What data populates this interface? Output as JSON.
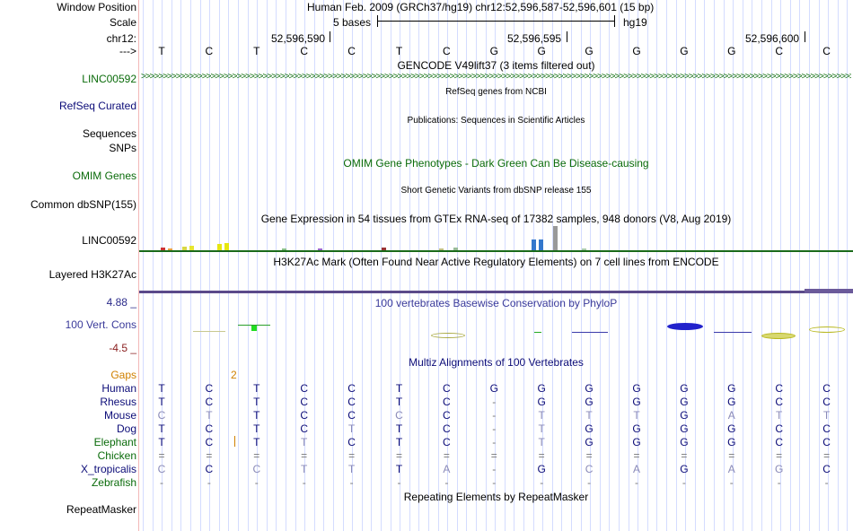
{
  "header": {
    "window_position_label": "Window Position",
    "window_position_value": "Human Feb. 2009 (GRCh37/hg19)   chr12:52,596,587-52,596,601 (15 bp)",
    "scale_label": "Scale",
    "scale_value": "5 bases",
    "assembly": "hg19",
    "chrom_label": "chr12:",
    "coord_1": "52,596,590",
    "coord_2": "52,596,595",
    "coord_3": "52,596,600",
    "strand_label": "--->"
  },
  "sequence": [
    "T",
    "C",
    "T",
    "C",
    "C",
    "T",
    "C",
    "G",
    "G",
    "G",
    "G",
    "G",
    "G",
    "C",
    "C"
  ],
  "tracks": {
    "gencode": {
      "title": "GENCODE V49lift37 (3 items filtered out)",
      "label": "LINC00592"
    },
    "refseq": {
      "title": "RefSeq genes from NCBI",
      "label": "RefSeq Curated"
    },
    "publications": {
      "title": "Publications: Sequences in Scientific Articles",
      "label1": "Sequences",
      "label2": "SNPs"
    },
    "omim": {
      "title": "OMIM Gene Phenotypes - Dark Green Can Be Disease-causing",
      "label": "OMIM Genes"
    },
    "dbsnp": {
      "title": "Short Genetic Variants from dbSNP release 155",
      "label": "Common dbSNP(155)"
    },
    "gtex": {
      "title": "Gene Expression in 54 tissues from GTEx RNA-seq of 17382 samples, 948 donors (V8, Aug 2019)",
      "label": "LINC00592"
    },
    "h3k27ac": {
      "title": "H3K27Ac Mark (Often Found Near Active Regulatory Elements) on 7 cell lines from ENCODE",
      "label": "Layered H3K27Ac"
    },
    "phylop": {
      "title": "100 vertebrates Basewise Conservation by PhyloP",
      "label": "100 Vert. Cons",
      "max": "4.88 _",
      "min": "-4.5 _"
    },
    "multiz": {
      "title": "Multiz Alignments of 100 Vertebrates",
      "gaps_label": "Gaps",
      "gap_value": "2"
    },
    "repeatmasker": {
      "title": "Repeating Elements by RepeatMasker",
      "label": "RepeatMasker"
    }
  },
  "alignment": [
    {
      "species": "Human",
      "bases": [
        "T",
        "C",
        "T",
        "C",
        "C",
        "T",
        "C",
        "G",
        "G",
        "G",
        "G",
        "G",
        "G",
        "C",
        "C"
      ]
    },
    {
      "species": "Rhesus",
      "bases": [
        "T",
        "C",
        "T",
        "C",
        "C",
        "T",
        "C",
        "-",
        "G",
        "G",
        "G",
        "G",
        "G",
        "C",
        "C"
      ]
    },
    {
      "species": "Mouse",
      "bases": [
        "C",
        "T",
        "T",
        "C",
        "C",
        "C",
        "C",
        "-",
        "T",
        "T",
        "T",
        "G",
        "A",
        "T",
        "T"
      ]
    },
    {
      "species": "Dog",
      "bases": [
        "T",
        "C",
        "T",
        "C",
        "T",
        "T",
        "C",
        "-",
        "T",
        "G",
        "G",
        "G",
        "G",
        "C",
        "C"
      ]
    },
    {
      "species": "Elephant",
      "bases": [
        "T",
        "C",
        "T",
        "T",
        "C",
        "T",
        "C",
        "-",
        "T",
        "G",
        "G",
        "G",
        "G",
        "C",
        "C"
      ]
    },
    {
      "species": "Chicken",
      "bases": [
        "=",
        "=",
        "=",
        "=",
        "=",
        "=",
        "=",
        "=",
        "=",
        "=",
        "=",
        "=",
        "=",
        "=",
        "="
      ]
    },
    {
      "species": "X_tropicalis",
      "bases": [
        "C",
        "C",
        "C",
        "T",
        "T",
        "T",
        "A",
        "-",
        "G",
        "C",
        "A",
        "G",
        "A",
        "G",
        "C"
      ]
    },
    {
      "species": "Zebrafish",
      "bases": [
        "-",
        "-",
        "-",
        "-",
        "-",
        "-",
        "-",
        "-",
        "-",
        "-",
        "-",
        "-",
        "-",
        "-",
        "-"
      ]
    }
  ],
  "colors": {
    "gene_green": "#0a6b0a",
    "refseq_blue": "#0c0c78",
    "phylop_title": "#3a3a9a",
    "phylop_max": "#2b2b8a",
    "phylop_min": "#8b2020",
    "gaps_orange": "#d08000",
    "h3k27ac_bar": "#5b4a8a"
  },
  "gtex_bars": [
    {
      "pos": 0.03,
      "h": 0.12,
      "color": "#cc3333"
    },
    {
      "pos": 0.04,
      "h": 0.08,
      "color": "#e8a040"
    },
    {
      "pos": 0.06,
      "h": 0.15,
      "color": "#d8d844"
    },
    {
      "pos": 0.07,
      "h": 0.18,
      "color": "#e6e630"
    },
    {
      "pos": 0.11,
      "h": 0.25,
      "color": "#e6e610"
    },
    {
      "pos": 0.12,
      "h": 0.28,
      "color": "#e6e610"
    },
    {
      "pos": 0.2,
      "h": 0.08,
      "color": "#88c088"
    },
    {
      "pos": 0.25,
      "h": 0.04,
      "color": "#aaaaaa"
    },
    {
      "pos": 0.25,
      "h": 0.06,
      "color": "#9966cc"
    },
    {
      "pos": 0.34,
      "h": 0.1,
      "color": "#993333"
    },
    {
      "pos": 0.42,
      "h": 0.06,
      "color": "#c0c080"
    },
    {
      "pos": 0.44,
      "h": 0.1,
      "color": "#99bb99"
    },
    {
      "pos": 0.55,
      "h": 0.45,
      "color": "#3377cc"
    },
    {
      "pos": 0.56,
      "h": 0.45,
      "color": "#3377cc"
    },
    {
      "pos": 0.58,
      "h": 1.0,
      "color": "#999999"
    },
    {
      "pos": 0.62,
      "h": 0.06,
      "color": "#aaccaa"
    }
  ]
}
